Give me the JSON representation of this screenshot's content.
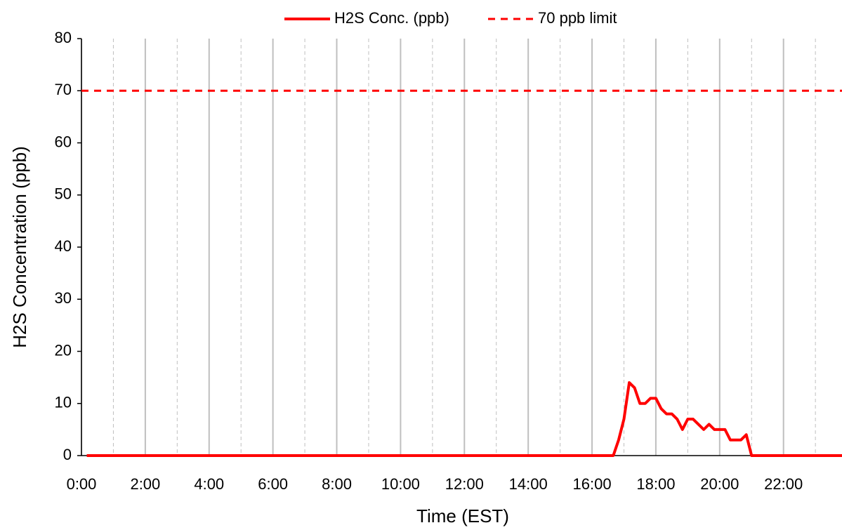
{
  "chart_data": {
    "type": "line",
    "xlabel": "Time (EST)",
    "ylabel": "H2S Concentration (ppb)",
    "xlim": [
      0,
      1430
    ],
    "ylim": [
      0,
      80
    ],
    "xticks": [
      {
        "value": 0,
        "label": "0:00"
      },
      {
        "value": 120,
        "label": "2:00"
      },
      {
        "value": 240,
        "label": "4:00"
      },
      {
        "value": 360,
        "label": "6:00"
      },
      {
        "value": 480,
        "label": "8:00"
      },
      {
        "value": 600,
        "label": "10:00"
      },
      {
        "value": 720,
        "label": "12:00"
      },
      {
        "value": 840,
        "label": "14:00"
      },
      {
        "value": 960,
        "label": "16:00"
      },
      {
        "value": 1080,
        "label": "18:00"
      },
      {
        "value": 1200,
        "label": "20:00"
      },
      {
        "value": 1320,
        "label": "22:00"
      }
    ],
    "xminorticks": [
      60,
      180,
      300,
      420,
      540,
      660,
      780,
      900,
      1020,
      1140,
      1260,
      1380
    ],
    "yticks": [
      0,
      10,
      20,
      30,
      40,
      50,
      60,
      70,
      80
    ],
    "grid": "x",
    "legend": "top",
    "series": [
      {
        "name": "H2S Conc. (ppb)",
        "color": "#ff0000",
        "dashed": false,
        "x": [
          10,
          1000,
          1010,
          1020,
          1030,
          1040,
          1050,
          1060,
          1070,
          1080,
          1090,
          1100,
          1110,
          1120,
          1130,
          1140,
          1150,
          1160,
          1170,
          1180,
          1190,
          1200,
          1210,
          1220,
          1230,
          1240,
          1250,
          1260,
          1430
        ],
        "values": [
          0,
          0,
          3,
          7,
          14,
          13,
          10,
          10,
          11,
          11,
          9,
          8,
          8,
          7,
          5,
          7,
          7,
          6,
          5,
          6,
          5,
          5,
          5,
          3,
          3,
          3,
          4,
          0,
          0
        ]
      },
      {
        "name": "70 ppb limit",
        "color": "#ff0000",
        "dashed": true,
        "x": [
          0,
          1430
        ],
        "values": [
          70,
          70
        ]
      }
    ]
  }
}
